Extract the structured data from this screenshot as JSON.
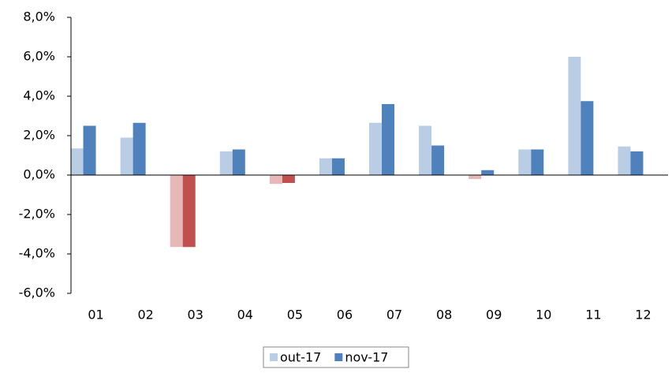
{
  "chart_data": {
    "type": "bar",
    "categories": [
      "01",
      "02",
      "03",
      "04",
      "05",
      "06",
      "07",
      "08",
      "09",
      "10",
      "11",
      "12"
    ],
    "series": [
      {
        "name": "out-17",
        "color": "#b9cde5",
        "negative_color": "#e6b9b8",
        "values": [
          1.35,
          1.9,
          -3.65,
          1.2,
          -0.45,
          0.85,
          2.65,
          2.5,
          -0.2,
          1.3,
          6.0,
          1.45
        ]
      },
      {
        "name": "nov-17",
        "color": "#4f81bd",
        "negative_color": "#c0504d",
        "values": [
          2.5,
          2.65,
          -3.65,
          1.3,
          -0.4,
          0.85,
          3.6,
          1.5,
          0.25,
          1.3,
          3.75,
          1.2
        ]
      }
    ],
    "ylim": [
      -6,
      8
    ],
    "yticks": [
      {
        "value": -6,
        "label": "-6,0%"
      },
      {
        "value": -4,
        "label": "-4,0%"
      },
      {
        "value": -2,
        "label": "-2,0%"
      },
      {
        "value": 0,
        "label": "0,0%"
      },
      {
        "value": 2,
        "label": "2,0%"
      },
      {
        "value": 4,
        "label": "4,0%"
      },
      {
        "value": 6,
        "label": "6,0%"
      },
      {
        "value": 8,
        "label": "8,0%"
      }
    ],
    "grid": false,
    "legend": "bottom"
  }
}
